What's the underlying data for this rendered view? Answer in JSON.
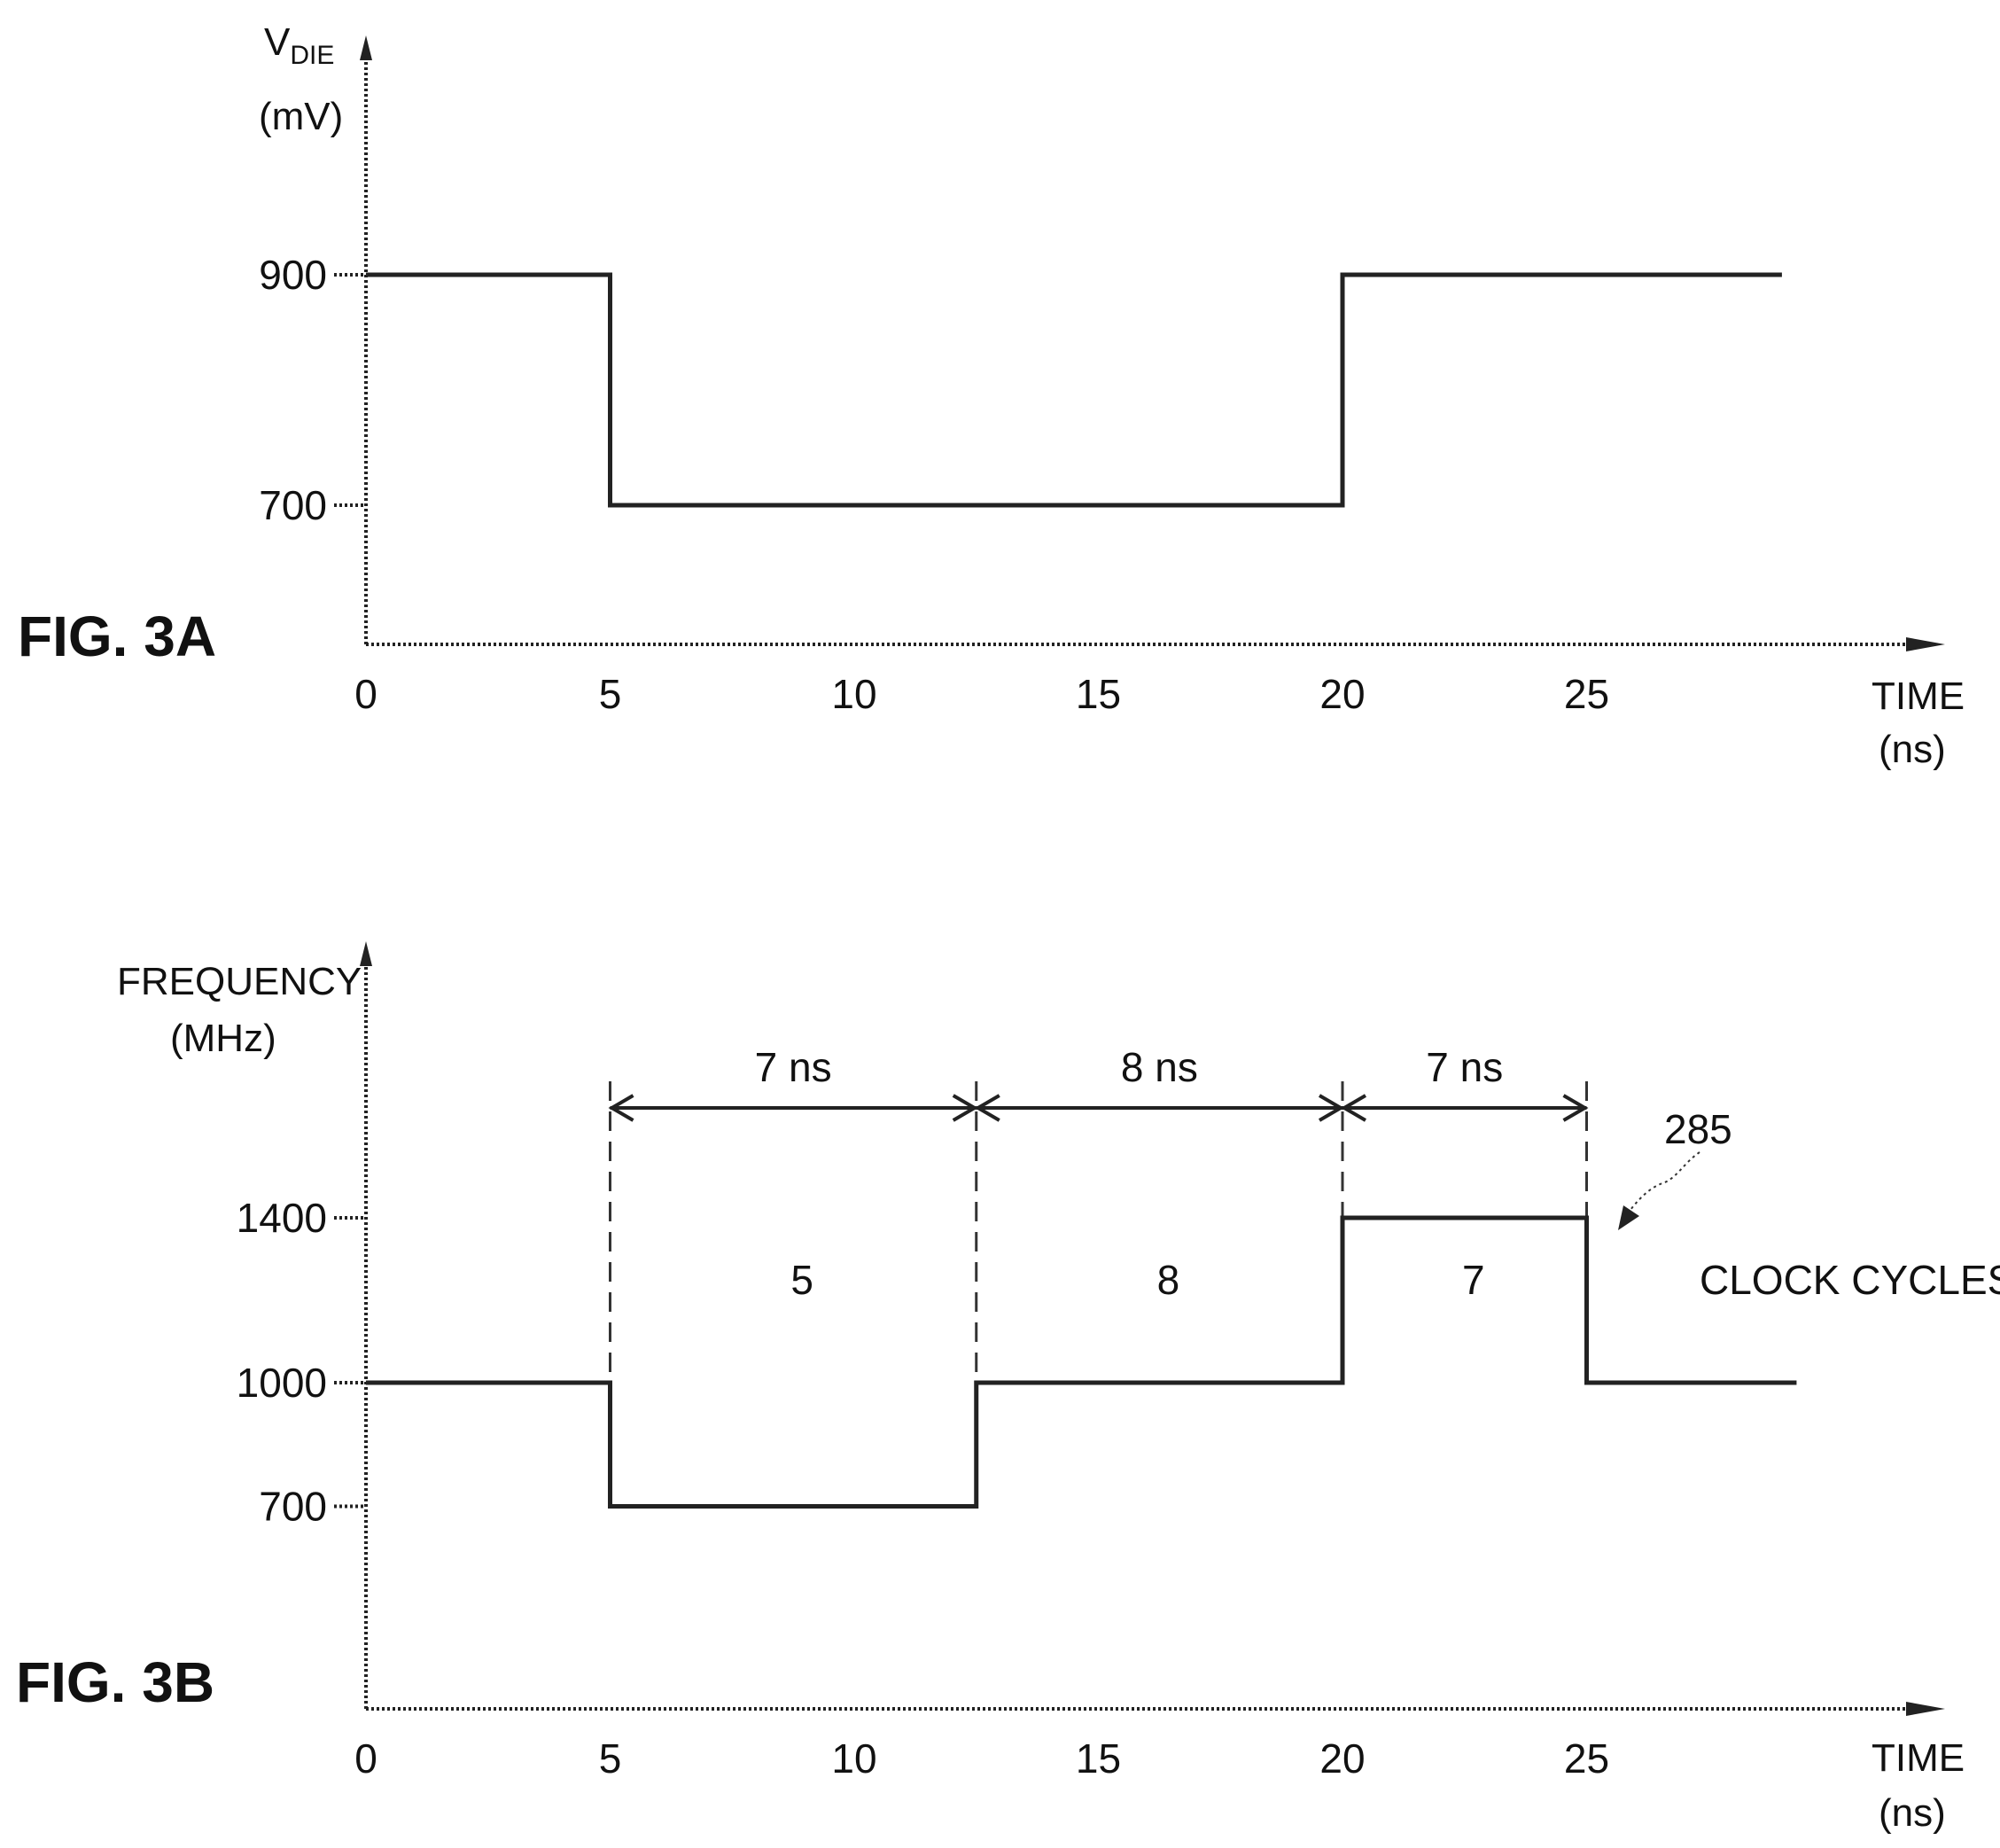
{
  "chart_data": [
    {
      "type": "line",
      "figure_label": "FIG.  3A",
      "ylabel_main": "V",
      "ylabel_sub": "DIE",
      "ylabel_unit": "(mV)",
      "xlabel": "TIME",
      "xlabel_unit": "(ns)",
      "xticks": [
        0,
        5,
        10,
        15,
        20,
        25
      ],
      "yticks": [
        700,
        900
      ],
      "xlim": [
        0,
        29
      ],
      "ylim": [
        580,
        1200
      ],
      "series": [
        {
          "x": [
            0,
            5,
            5,
            20,
            20,
            29
          ],
          "y": [
            900,
            900,
            700,
            700,
            900,
            900
          ]
        }
      ]
    },
    {
      "type": "line",
      "figure_label": "FIG.  3B",
      "ylabel_main": "FREQUENCY",
      "ylabel_unit": "(MHz)",
      "xlabel": "TIME",
      "xlabel_unit": "(ns)",
      "xticks": [
        0,
        5,
        10,
        15,
        20,
        25
      ],
      "yticks": [
        700,
        1000,
        1400
      ],
      "xlim": [
        0,
        29
      ],
      "ylim": [
        0,
        2400
      ],
      "series": [
        {
          "x": [
            0,
            5,
            5,
            12.5,
            12.5,
            20,
            20,
            25,
            25,
            29.3
          ],
          "y": [
            1000,
            1000,
            700,
            700,
            1000,
            1000,
            1400,
            1400,
            1000,
            1000
          ]
        }
      ],
      "intervals": [
        {
          "x0": 5,
          "x1": 12.5,
          "label": "7  ns",
          "cycles": "5"
        },
        {
          "x0": 12.5,
          "x1": 20,
          "label": "8  ns",
          "cycles": "8"
        },
        {
          "x0": 20,
          "x1": 25,
          "label": "7  ns",
          "cycles": "7"
        }
      ],
      "annotations": {
        "reference_numeral": "285",
        "cycles_label": "CLOCK  CYCLES"
      }
    }
  ]
}
